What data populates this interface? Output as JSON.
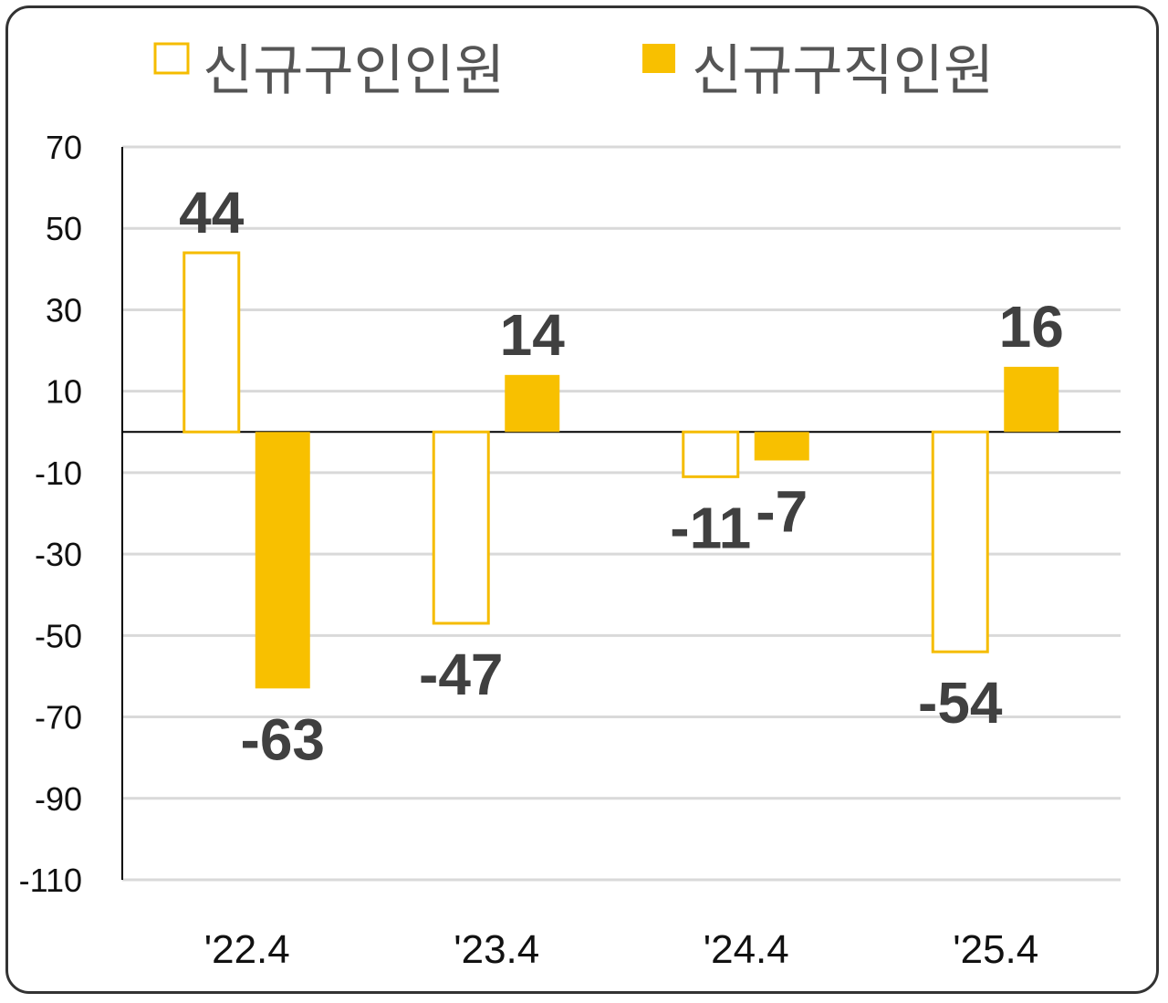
{
  "chart_data": {
    "type": "bar",
    "categories": [
      "'22.4",
      "'23.4",
      "'24.4",
      "'25.4"
    ],
    "series": [
      {
        "name": "신규구인인원",
        "values": [
          44,
          -47,
          -11,
          -54
        ],
        "style": "outline",
        "color": "#F5BC00"
      },
      {
        "name": "신규구직인원",
        "values": [
          -63,
          14,
          -7,
          16
        ],
        "style": "filled",
        "color": "#F8C000"
      }
    ],
    "ylim": [
      -110,
      70
    ],
    "yticks": [
      70,
      50,
      30,
      10,
      -10,
      -30,
      -50,
      -70,
      -90,
      -110
    ],
    "grid": true,
    "legend": "top",
    "title": "",
    "xlabel": "",
    "ylabel": ""
  }
}
